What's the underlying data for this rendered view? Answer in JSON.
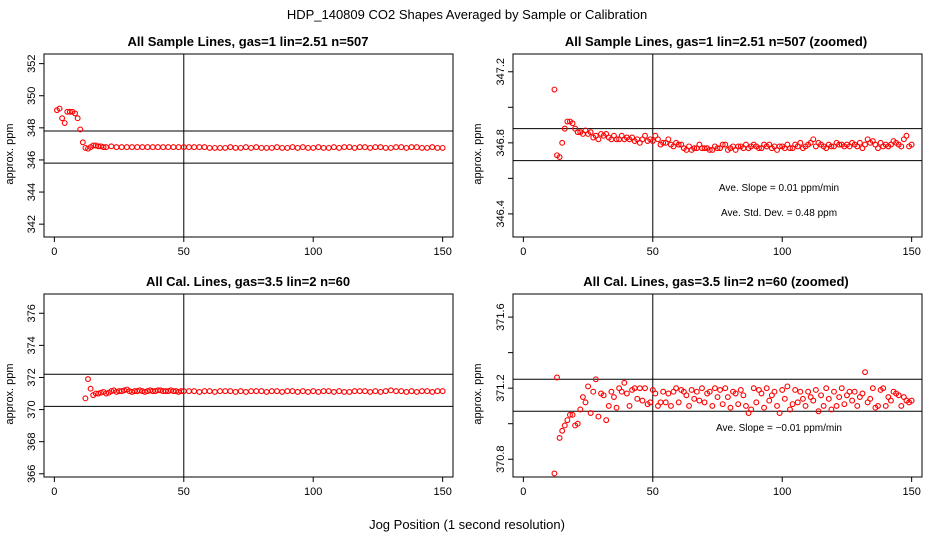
{
  "figure": {
    "title": "HDP_140809  CO2 Shapes Averaged by Sample or Calibration",
    "xlabel": "Jog Position (1 second resolution)"
  },
  "colors": {
    "points": "#ff0000",
    "axes": "#000000",
    "background": "#ffffff"
  },
  "chart_data": [
    {
      "type": "scatter",
      "title": "All Sample Lines, gas=1 lin=2.51 n=507",
      "xlabel": "",
      "ylabel": "approx. ppm",
      "xlim": [
        -4,
        154
      ],
      "ylim": [
        341.2,
        352.6
      ],
      "xticks": [
        0,
        50,
        100,
        150
      ],
      "yticks": [
        342,
        344,
        346,
        348,
        350,
        352
      ],
      "hlines": [
        345.8,
        347.8
      ],
      "vlines": [
        50
      ],
      "annotations": [],
      "series": [
        {
          "x": [
            1,
            2,
            3,
            4,
            5,
            6,
            7,
            8,
            9,
            10,
            11,
            12,
            13,
            14,
            15,
            16,
            17,
            18,
            19,
            20,
            22,
            24,
            26,
            28,
            30,
            32,
            34,
            36,
            38,
            40,
            42,
            44,
            46,
            48,
            50,
            52,
            54,
            56,
            58,
            60,
            62,
            64,
            66,
            68,
            70,
            72,
            74,
            76,
            78,
            80,
            82,
            84,
            86,
            88,
            90,
            92,
            94,
            96,
            98,
            100,
            102,
            104,
            106,
            108,
            110,
            112,
            114,
            116,
            118,
            120,
            122,
            124,
            126,
            128,
            130,
            132,
            134,
            136,
            138,
            140,
            142,
            144,
            146,
            148,
            150
          ],
          "y": [
            349.1,
            349.2,
            348.6,
            348.3,
            349.0,
            349.0,
            349.0,
            348.9,
            348.6,
            347.9,
            347.1,
            346.75,
            346.7,
            346.8,
            346.9,
            346.9,
            346.85,
            346.85,
            346.8,
            346.8,
            346.85,
            346.8,
            346.8,
            346.8,
            346.8,
            346.8,
            346.8,
            346.8,
            346.8,
            346.8,
            346.8,
            346.8,
            346.8,
            346.8,
            346.8,
            346.8,
            346.8,
            346.8,
            346.8,
            346.75,
            346.75,
            346.75,
            346.75,
            346.8,
            346.75,
            346.75,
            346.8,
            346.75,
            346.8,
            346.75,
            346.75,
            346.75,
            346.8,
            346.75,
            346.75,
            346.8,
            346.75,
            346.8,
            346.75,
            346.75,
            346.8,
            346.75,
            346.75,
            346.8,
            346.75,
            346.8,
            346.8,
            346.75,
            346.8,
            346.8,
            346.75,
            346.8,
            346.8,
            346.75,
            346.75,
            346.8,
            346.8,
            346.75,
            346.8,
            346.8,
            346.75,
            346.75,
            346.8,
            346.75,
            346.75
          ]
        }
      ]
    },
    {
      "type": "scatter",
      "title": "All Sample Lines, gas=1 lin=2.51 n=507 (zoomed)",
      "xlabel": "",
      "ylabel": "approx. ppm",
      "xlim": [
        -4,
        154
      ],
      "ylim": [
        346.27,
        347.3
      ],
      "xticks": [
        0,
        50,
        100,
        150
      ],
      "yticks": [
        346.4,
        346.6,
        346.8,
        347.0,
        347.2
      ],
      "ytick_labels": [
        "346.4",
        "",
        "346.8",
        "",
        "347.2"
      ],
      "hlines": [
        346.7,
        346.88
      ],
      "vlines": [
        50
      ],
      "annotations": [
        "Ave. Slope =  0.01  ppm/min",
        "Ave. Std. Dev. =  0.48  ppm"
      ],
      "series": [
        {
          "x": [
            12,
            13,
            14,
            15,
            16,
            17,
            18,
            19,
            20,
            21,
            22,
            23,
            24,
            25,
            26,
            27,
            28,
            29,
            30,
            31,
            32,
            33,
            34,
            35,
            36,
            37,
            38,
            39,
            40,
            41,
            42,
            43,
            44,
            45,
            46,
            47,
            48,
            49,
            50,
            51,
            52,
            53,
            54,
            55,
            56,
            57,
            58,
            59,
            60,
            61,
            62,
            63,
            64,
            65,
            66,
            67,
            68,
            69,
            70,
            71,
            72,
            73,
            74,
            75,
            76,
            77,
            78,
            79,
            80,
            81,
            82,
            83,
            84,
            85,
            86,
            87,
            88,
            89,
            90,
            91,
            92,
            93,
            94,
            95,
            96,
            97,
            98,
            99,
            100,
            101,
            102,
            103,
            104,
            105,
            106,
            107,
            108,
            109,
            110,
            111,
            112,
            113,
            114,
            115,
            116,
            117,
            118,
            119,
            120,
            121,
            122,
            123,
            124,
            125,
            126,
            127,
            128,
            129,
            130,
            131,
            132,
            133,
            134,
            135,
            136,
            137,
            138,
            139,
            140,
            141,
            142,
            143,
            144,
            145,
            146,
            147,
            148,
            149,
            150
          ],
          "y": [
            347.1,
            346.73,
            346.72,
            346.8,
            346.88,
            346.92,
            346.92,
            346.91,
            346.88,
            346.86,
            346.86,
            346.85,
            346.87,
            346.85,
            346.86,
            346.83,
            346.84,
            346.82,
            346.85,
            346.84,
            346.85,
            346.83,
            346.82,
            346.84,
            346.82,
            346.82,
            346.84,
            346.82,
            346.83,
            346.82,
            346.83,
            346.81,
            346.82,
            346.8,
            346.82,
            346.84,
            346.81,
            346.82,
            346.81,
            346.84,
            346.82,
            346.79,
            346.8,
            346.8,
            346.82,
            346.79,
            346.78,
            346.8,
            346.79,
            346.79,
            346.77,
            346.76,
            346.78,
            346.76,
            346.77,
            346.77,
            346.79,
            346.77,
            346.77,
            346.77,
            346.76,
            346.76,
            346.78,
            346.77,
            346.77,
            346.79,
            346.79,
            346.76,
            346.77,
            346.78,
            346.76,
            346.78,
            346.78,
            346.77,
            346.79,
            346.77,
            346.78,
            346.79,
            346.78,
            346.77,
            346.77,
            346.79,
            346.78,
            346.79,
            346.77,
            346.78,
            346.76,
            346.78,
            346.78,
            346.77,
            346.79,
            346.77,
            346.77,
            346.79,
            346.78,
            346.8,
            346.77,
            346.78,
            346.79,
            346.8,
            346.82,
            346.78,
            346.8,
            346.79,
            346.78,
            346.77,
            346.79,
            346.78,
            346.78,
            346.8,
            346.79,
            346.79,
            346.78,
            346.79,
            346.78,
            346.8,
            346.79,
            346.78,
            346.8,
            346.77,
            346.79,
            346.82,
            346.8,
            346.81,
            346.79,
            346.77,
            346.8,
            346.78,
            346.79,
            346.78,
            346.79,
            346.81,
            346.8,
            346.79,
            346.78,
            346.82,
            346.84,
            346.78,
            346.79
          ]
        }
      ]
    },
    {
      "type": "scatter",
      "title": "All Cal. Lines, gas=3.5 lin=2 n=60",
      "xlabel": "",
      "ylabel": "approx. ppm",
      "xlim": [
        -4,
        154
      ],
      "ylim": [
        365.8,
        377.2
      ],
      "xticks": [
        0,
        50,
        100,
        150
      ],
      "yticks": [
        366,
        368,
        370,
        372,
        374,
        376
      ],
      "hlines": [
        370.2,
        372.2
      ],
      "vlines": [
        50
      ],
      "annotations": [],
      "series": [
        {
          "x": [
            12,
            13,
            14,
            15,
            16,
            17,
            18,
            19,
            20,
            21,
            22,
            23,
            24,
            25,
            26,
            27,
            28,
            29,
            30,
            31,
            32,
            33,
            34,
            35,
            36,
            37,
            38,
            39,
            40,
            41,
            42,
            43,
            44,
            45,
            46,
            47,
            48,
            49,
            50,
            52,
            54,
            56,
            58,
            60,
            62,
            64,
            66,
            68,
            70,
            72,
            74,
            76,
            78,
            80,
            82,
            84,
            86,
            88,
            90,
            92,
            94,
            96,
            98,
            100,
            102,
            104,
            106,
            108,
            110,
            112,
            114,
            116,
            118,
            120,
            122,
            124,
            126,
            128,
            130,
            132,
            134,
            136,
            138,
            140,
            142,
            144,
            146,
            148,
            150
          ],
          "y": [
            370.7,
            371.9,
            371.3,
            370.9,
            371.0,
            371.0,
            371.05,
            371.1,
            371.0,
            371.05,
            371.15,
            371.2,
            371.1,
            371.15,
            371.15,
            371.2,
            371.25,
            371.15,
            371.1,
            371.15,
            371.15,
            371.2,
            371.15,
            371.1,
            371.15,
            371.2,
            371.15,
            371.15,
            371.2,
            371.2,
            371.15,
            371.15,
            371.15,
            371.2,
            371.15,
            371.15,
            371.1,
            371.15,
            371.15,
            371.15,
            371.15,
            371.1,
            371.15,
            371.15,
            371.1,
            371.15,
            371.15,
            371.15,
            371.1,
            371.15,
            371.1,
            371.15,
            371.15,
            371.15,
            371.1,
            371.15,
            371.15,
            371.1,
            371.15,
            371.15,
            371.1,
            371.15,
            371.1,
            371.15,
            371.1,
            371.15,
            371.15,
            371.1,
            371.15,
            371.1,
            371.1,
            371.15,
            371.15,
            371.15,
            371.1,
            371.15,
            371.1,
            371.15,
            371.2,
            371.15,
            371.15,
            371.1,
            371.15,
            371.1,
            371.15,
            371.15,
            371.1,
            371.15,
            371.15
          ]
        }
      ]
    },
    {
      "type": "scatter",
      "title": "All Cal. Lines, gas=3.5 lin=2 n=60 (zoomed)",
      "xlabel": "",
      "ylabel": "approx. ppm",
      "xlim": [
        -4,
        154
      ],
      "ylim": [
        370.7,
        371.73
      ],
      "xticks": [
        0,
        50,
        100,
        150
      ],
      "yticks": [
        370.8,
        371.0,
        371.2,
        371.4,
        371.6
      ],
      "ytick_labels": [
        "370.8",
        "",
        "371.2",
        "",
        "371.6"
      ],
      "hlines": [
        371.07,
        371.25
      ],
      "vlines": [
        50
      ],
      "annotations": [
        "Ave. Slope =  −0.01  ppm/min"
      ],
      "series": [
        {
          "x": [
            12,
            13,
            14,
            15,
            16,
            17,
            18,
            19,
            20,
            21,
            22,
            23,
            24,
            25,
            26,
            27,
            28,
            29,
            30,
            31,
            32,
            33,
            34,
            35,
            36,
            37,
            38,
            39,
            40,
            41,
            42,
            43,
            44,
            45,
            46,
            47,
            48,
            49,
            50,
            51,
            52,
            53,
            54,
            55,
            56,
            57,
            58,
            59,
            60,
            61,
            62,
            63,
            64,
            65,
            66,
            67,
            68,
            69,
            70,
            71,
            72,
            73,
            74,
            75,
            76,
            77,
            78,
            79,
            80,
            81,
            82,
            83,
            84,
            85,
            86,
            87,
            88,
            89,
            90,
            91,
            92,
            93,
            94,
            95,
            96,
            97,
            98,
            99,
            100,
            101,
            102,
            103,
            104,
            105,
            106,
            107,
            108,
            109,
            110,
            111,
            112,
            113,
            114,
            115,
            116,
            117,
            118,
            119,
            120,
            121,
            122,
            123,
            124,
            125,
            126,
            127,
            128,
            129,
            130,
            131,
            132,
            133,
            134,
            135,
            136,
            137,
            138,
            139,
            140,
            141,
            142,
            143,
            144,
            145,
            146,
            147,
            148,
            149,
            150
          ],
          "y": [
            370.72,
            371.26,
            370.92,
            370.96,
            370.99,
            371.02,
            371.05,
            371.05,
            370.99,
            371.0,
            371.08,
            371.15,
            371.12,
            371.21,
            371.06,
            371.18,
            371.25,
            371.04,
            371.17,
            371.16,
            371.02,
            371.1,
            371.18,
            371.15,
            371.09,
            371.2,
            371.18,
            371.23,
            371.17,
            371.1,
            371.19,
            371.2,
            371.14,
            371.2,
            371.13,
            371.2,
            371.11,
            371.12,
            371.19,
            371.17,
            371.1,
            371.12,
            371.18,
            371.12,
            371.17,
            371.1,
            371.18,
            371.2,
            371.12,
            371.19,
            371.18,
            371.16,
            371.1,
            371.19,
            371.14,
            371.18,
            371.13,
            371.2,
            371.12,
            371.17,
            371.18,
            371.1,
            371.2,
            371.15,
            371.19,
            371.11,
            371.2,
            371.15,
            371.09,
            371.18,
            371.17,
            371.11,
            371.19,
            371.16,
            371.1,
            371.06,
            371.08,
            371.2,
            371.12,
            371.19,
            371.17,
            371.09,
            371.2,
            371.13,
            371.16,
            371.18,
            371.1,
            371.06,
            371.19,
            371.14,
            371.21,
            371.08,
            371.11,
            371.19,
            371.12,
            371.18,
            371.14,
            371.1,
            371.18,
            371.15,
            371.13,
            371.19,
            371.07,
            371.16,
            371.1,
            371.2,
            371.14,
            371.08,
            371.18,
            371.1,
            371.15,
            371.2,
            371.11,
            371.16,
            371.18,
            371.13,
            371.18,
            371.1,
            371.15,
            371.17,
            371.29,
            371.12,
            371.14,
            371.2,
            371.09,
            371.1,
            371.19,
            371.2,
            371.1,
            371.15,
            371.13,
            371.18,
            371.17,
            371.16,
            371.1,
            371.15,
            371.13,
            371.12,
            371.13
          ]
        }
      ]
    }
  ]
}
